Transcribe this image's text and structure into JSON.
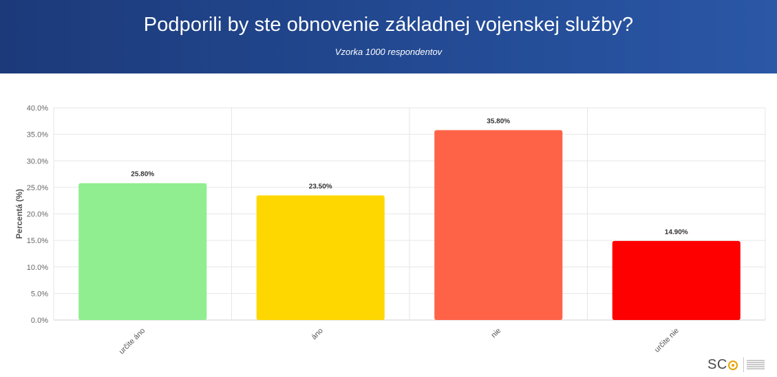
{
  "header": {
    "title": "Podporili by ste obnovenie základnej vojenskej služby?",
    "subtitle": "Vzorka 1000 respondentov"
  },
  "chart_data": {
    "type": "bar",
    "title": "Podporili by ste obnovenie základnej vojenskej služby?",
    "subtitle": "Vzorka 1000 respondentov",
    "xlabel": "",
    "ylabel": "Percentá (%)",
    "categories": [
      "určite áno",
      "áno",
      "nie",
      "určite nie"
    ],
    "values": [
      25.8,
      23.5,
      35.8,
      14.9
    ],
    "value_labels": [
      "25.80%",
      "23.50%",
      "35.80%",
      "14.90%"
    ],
    "bar_colors": [
      "#90ee90",
      "#ffd700",
      "#ff6347",
      "#ff0000"
    ],
    "ylim": [
      0,
      40
    ],
    "yticks": [
      "0.0%",
      "5.0%",
      "10.0%",
      "15.0%",
      "20.0%",
      "25.0%",
      "30.0%",
      "35.0%",
      "40.0%"
    ],
    "grid": true,
    "legend": "none"
  },
  "logo": {
    "text": "SC",
    "accent_color": "#e4a300"
  }
}
